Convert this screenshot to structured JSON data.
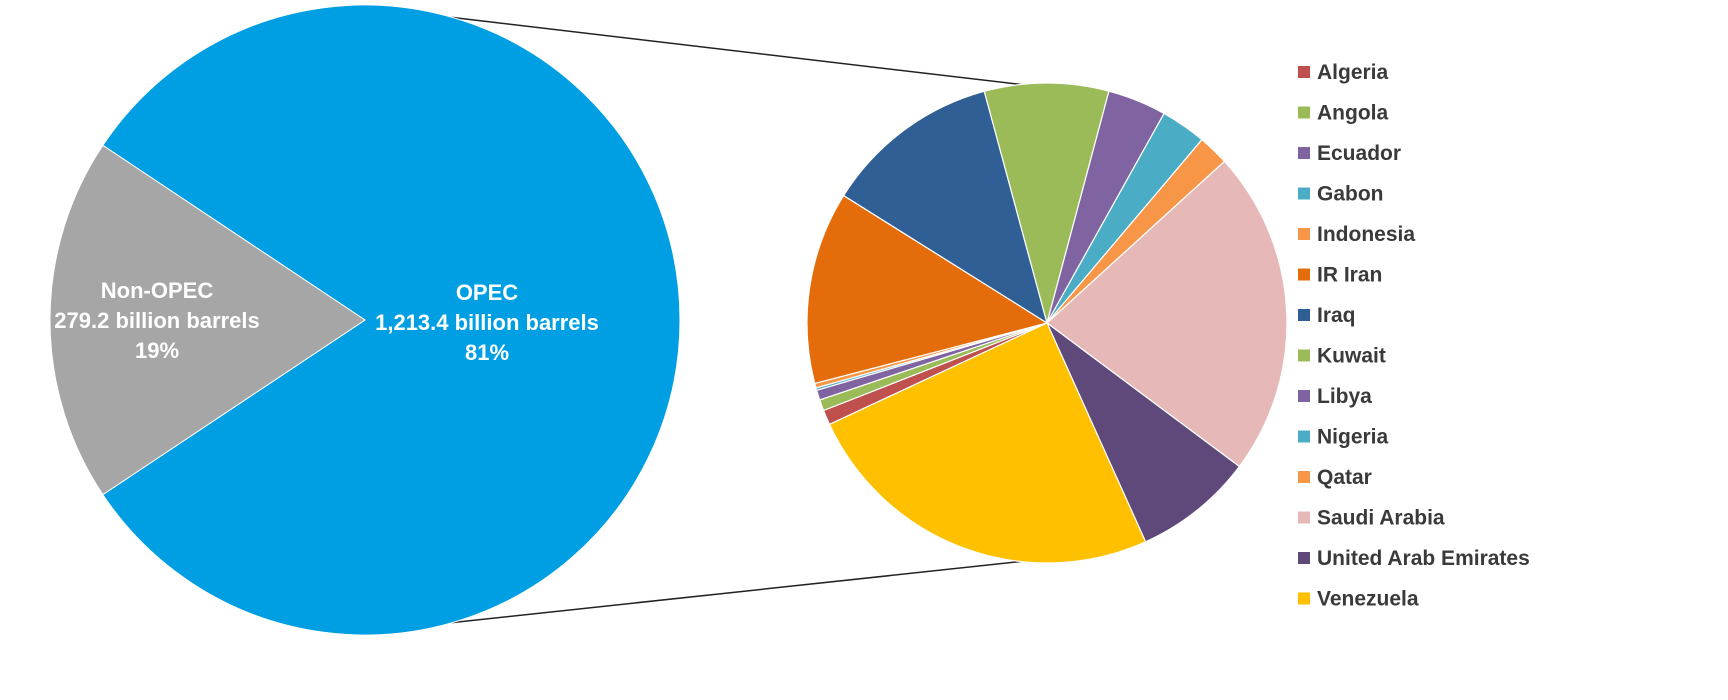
{
  "chart_data": [
    {
      "type": "pie",
      "slices": [
        {
          "name": "OPEC",
          "label_lines": [
            "OPEC",
            "1,213.4 billion barrels",
            "81%"
          ],
          "value": 1213.4,
          "color": "#009fe3"
        },
        {
          "name": "Non-OPEC",
          "label_lines": [
            "Non-OPEC",
            "279.2 billion barrels",
            "19%"
          ],
          "value": 279.2,
          "color": "#a6a6a6"
        }
      ]
    },
    {
      "type": "pie",
      "categories": [
        "Algeria",
        "Angola",
        "Ecuador",
        "Gabon",
        "Indonesia",
        "IR Iran",
        "Iraq",
        "Kuwait",
        "Libya",
        "Nigeria",
        "Qatar",
        "Saudi Arabia",
        "United Arab Emirates",
        "Venezuela"
      ],
      "values": [
        12.2,
        9.0,
        8.2,
        2.0,
        3.7,
        157.3,
        144.2,
        101.5,
        48.0,
        37.1,
        25.2,
        266.5,
        97.8,
        300.9
      ],
      "colors": [
        "#c0504d",
        "#9bbb59",
        "#8064a2",
        "#4bacc6",
        "#f79646",
        "#e46c0a",
        "#2f5f94",
        "#9bbb59",
        "#8064a2",
        "#4bacc6",
        "#f79646",
        "#e6b9b8",
        "#5f497a",
        "#ffc000"
      ],
      "legend_position": "right"
    }
  ]
}
